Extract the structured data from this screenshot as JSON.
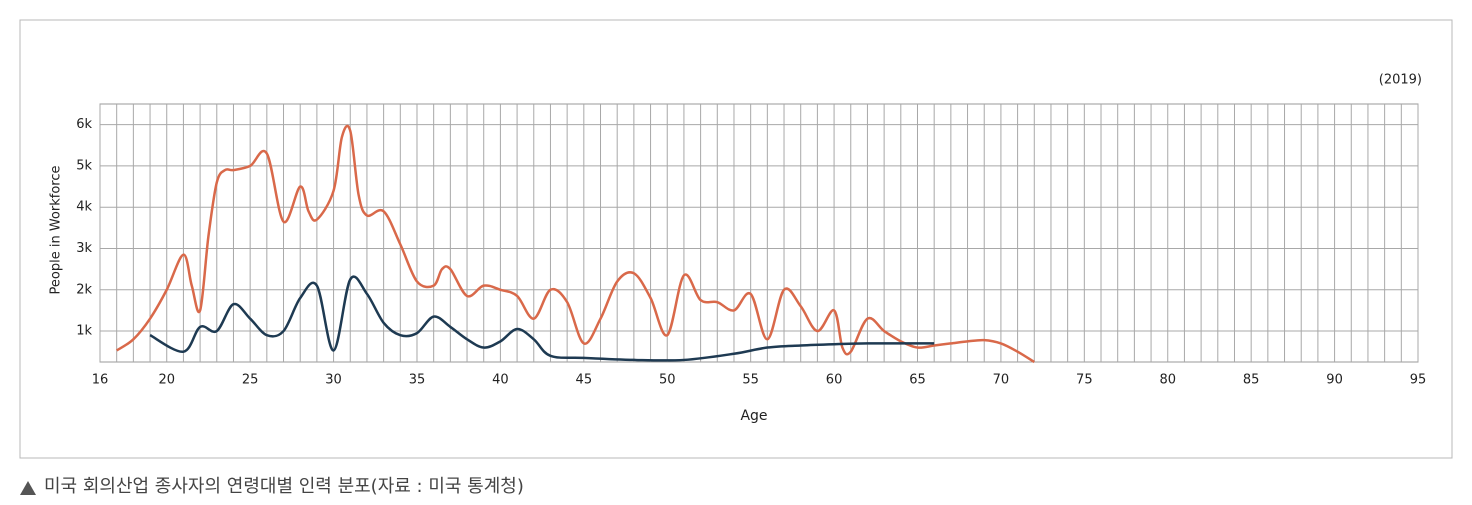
{
  "chart_data": {
    "type": "line",
    "annotation": "(2019)",
    "xlabel": "Age",
    "ylabel": "People in Workforce",
    "caption": "미국 회의산업 종사자의 연령대별 인력 분포(자료 : 미국 통계청)",
    "xlim": [
      16,
      95
    ],
    "ylim": [
      250,
      6500
    ],
    "xticks": [
      16,
      20,
      25,
      30,
      35,
      40,
      45,
      50,
      55,
      60,
      65,
      70,
      75,
      80,
      85,
      90,
      95
    ],
    "x_minor_ticks": [
      16,
      17,
      18,
      19,
      20,
      21,
      22,
      23,
      24,
      25,
      26,
      27,
      28,
      29,
      30,
      31,
      32,
      33,
      34,
      35,
      36,
      37,
      38,
      39,
      40,
      41,
      42,
      43,
      44,
      45,
      46,
      47,
      48,
      49,
      50,
      51,
      52,
      53,
      54,
      55,
      56,
      57,
      58,
      59,
      60,
      61,
      62,
      63,
      64,
      65,
      66,
      67,
      68,
      69,
      70,
      71,
      72,
      73,
      74,
      75,
      76,
      77,
      78,
      79,
      80,
      81,
      82,
      83,
      84,
      85,
      86,
      87,
      88,
      89,
      90,
      91,
      92,
      93,
      94,
      95
    ],
    "yticks": [
      {
        "value": 1000,
        "label": "1k"
      },
      {
        "value": 2000,
        "label": "2k"
      },
      {
        "value": 3000,
        "label": "3k"
      },
      {
        "value": 4000,
        "label": "4k"
      },
      {
        "value": 5000,
        "label": "5k"
      },
      {
        "value": 6000,
        "label": "6k"
      }
    ],
    "grid": true,
    "series": [
      {
        "color": "#d9694a",
        "x": [
          17,
          18,
          19,
          20,
          21,
          21.5,
          22,
          22.5,
          23,
          23.5,
          24,
          25,
          26,
          27,
          28,
          28.5,
          29,
          30,
          30.5,
          31,
          31.5,
          32,
          33,
          34,
          35,
          36,
          36.5,
          37,
          38,
          39,
          40,
          41,
          42,
          43,
          44,
          45,
          46,
          47,
          48,
          49,
          50,
          51,
          52,
          53,
          54,
          55,
          56,
          57,
          58,
          59,
          60,
          60.5,
          61,
          62,
          63,
          64,
          65,
          66,
          67,
          68,
          69,
          70,
          71,
          72
        ],
        "values": [
          530,
          800,
          1300,
          2000,
          2850,
          2100,
          1500,
          3300,
          4600,
          4900,
          4900,
          5000,
          5300,
          3650,
          4500,
          3900,
          3700,
          4400,
          5700,
          5850,
          4300,
          3800,
          3900,
          3100,
          2200,
          2100,
          2500,
          2500,
          1850,
          2100,
          2000,
          1850,
          1300,
          2000,
          1700,
          700,
          1300,
          2200,
          2400,
          1800,
          900,
          2350,
          1750,
          1700,
          1500,
          1900,
          800,
          2000,
          1600,
          1000,
          1500,
          600,
          500,
          1300,
          1000,
          750,
          600,
          650,
          700,
          750,
          780,
          700,
          500,
          250
        ]
      },
      {
        "color": "#1e3a52",
        "x": [
          19,
          21,
          22,
          23,
          24,
          25,
          26,
          27,
          28,
          29,
          30,
          31,
          32,
          33,
          34,
          35,
          36,
          37,
          38,
          39,
          40,
          41,
          42,
          43,
          45,
          48,
          51,
          54,
          56,
          58,
          60,
          62,
          64,
          66
        ],
        "values": [
          900,
          500,
          1100,
          1000,
          1650,
          1300,
          900,
          1000,
          1800,
          2100,
          530,
          2250,
          1900,
          1200,
          900,
          950,
          1350,
          1100,
          800,
          600,
          750,
          1050,
          800,
          400,
          350,
          300,
          300,
          450,
          600,
          650,
          680,
          700,
          700,
          700
        ]
      }
    ]
  }
}
